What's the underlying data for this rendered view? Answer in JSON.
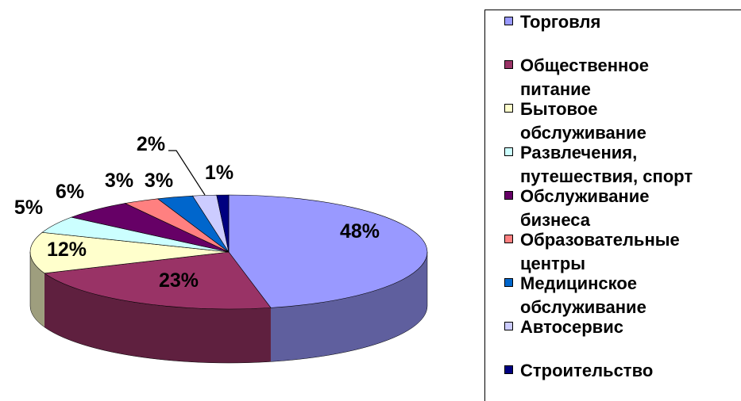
{
  "chart_data": {
    "type": "pie",
    "title": "",
    "categories": [
      "Торговля",
      "Общественное питание",
      "Бытовое обслуживание",
      "Развлечения, путешествия, спорт",
      "Обслуживание бизнеса",
      "Образовательные центры",
      "Медицинское обслуживание",
      "Автосервис",
      "Строительство"
    ],
    "legend_labels": [
      "Торговля",
      "Общественное\nпитание",
      "Бытовое\nобслуживание",
      "Развлечения,\nпутешествия, спорт",
      "Обслуживание\nбизнеса",
      "Образовательные\nцентры",
      "Медицинское\nобслуживание",
      "Автосервис",
      "Строительство"
    ],
    "values": [
      48,
      23,
      12,
      5,
      6,
      3,
      3,
      2,
      1
    ],
    "value_labels": [
      "48%",
      "23%",
      "12%",
      "5%",
      "6%",
      "3%",
      "3%",
      "2%",
      "1%"
    ],
    "colors": [
      "#9999FF",
      "#993366",
      "#FFFFCC",
      "#CCFFFF",
      "#660066",
      "#FF8080",
      "#0066CC",
      "#CCCCFF",
      "#000080"
    ],
    "style": "3d-pie",
    "legend_position": "right"
  }
}
